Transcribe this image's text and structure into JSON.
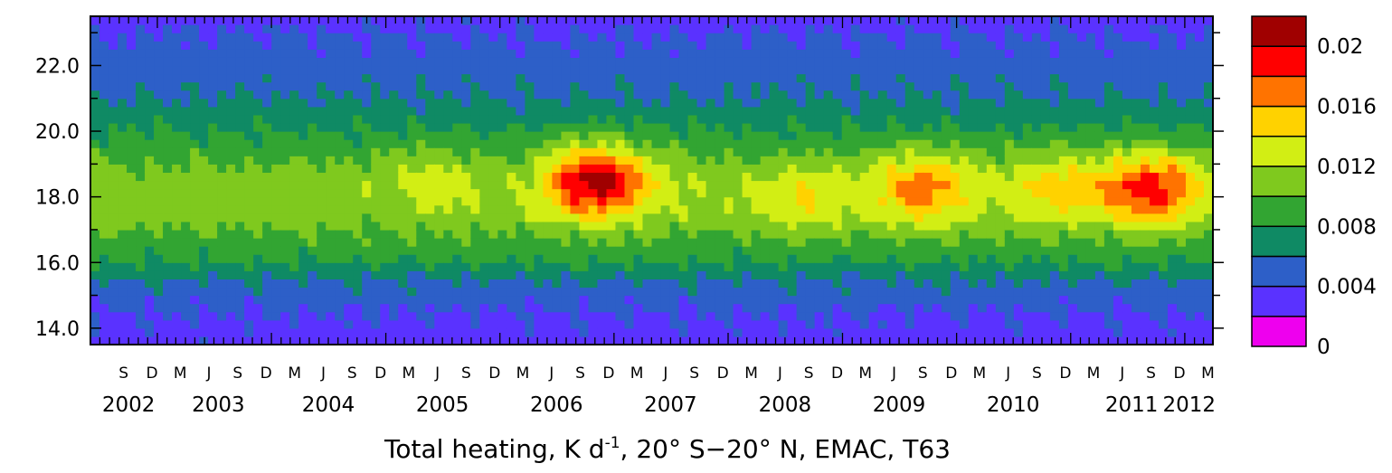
{
  "chart_data": {
    "type": "heatmap",
    "title_parts": [
      "Total heating, K d",
      "-1",
      ", 20° S−20° N, EMAC, T63"
    ],
    "y_ticks": [
      "14.0",
      "16.0",
      "18.0",
      "20.0",
      "22.0"
    ],
    "y_tick_values": [
      14,
      16,
      18,
      20,
      22
    ],
    "ylim": [
      13.5,
      23.5
    ],
    "xlim": [
      "2002-06-01",
      "2012-03-31"
    ],
    "x_month_labels": [
      {
        "t": "S",
        "date": "2002-09-15"
      },
      {
        "t": "D",
        "date": "2002-12-15"
      },
      {
        "t": "M",
        "date": "2003-03-15"
      },
      {
        "t": "J",
        "date": "2003-06-15"
      },
      {
        "t": "S",
        "date": "2003-09-15"
      },
      {
        "t": "D",
        "date": "2003-12-15"
      },
      {
        "t": "M",
        "date": "2004-03-15"
      },
      {
        "t": "J",
        "date": "2004-06-15"
      },
      {
        "t": "S",
        "date": "2004-09-15"
      },
      {
        "t": "D",
        "date": "2004-12-15"
      },
      {
        "t": "M",
        "date": "2005-03-15"
      },
      {
        "t": "J",
        "date": "2005-06-15"
      },
      {
        "t": "S",
        "date": "2005-09-15"
      },
      {
        "t": "D",
        "date": "2005-12-15"
      },
      {
        "t": "M",
        "date": "2006-03-15"
      },
      {
        "t": "J",
        "date": "2006-06-15"
      },
      {
        "t": "S",
        "date": "2006-09-15"
      },
      {
        "t": "D",
        "date": "2006-12-15"
      },
      {
        "t": "M",
        "date": "2007-03-15"
      },
      {
        "t": "J",
        "date": "2007-06-15"
      },
      {
        "t": "S",
        "date": "2007-09-15"
      },
      {
        "t": "D",
        "date": "2007-12-15"
      },
      {
        "t": "M",
        "date": "2008-03-15"
      },
      {
        "t": "J",
        "date": "2008-06-15"
      },
      {
        "t": "S",
        "date": "2008-09-15"
      },
      {
        "t": "D",
        "date": "2008-12-15"
      },
      {
        "t": "M",
        "date": "2009-03-15"
      },
      {
        "t": "J",
        "date": "2009-06-15"
      },
      {
        "t": "S",
        "date": "2009-09-15"
      },
      {
        "t": "D",
        "date": "2009-12-15"
      },
      {
        "t": "M",
        "date": "2010-03-15"
      },
      {
        "t": "J",
        "date": "2010-06-15"
      },
      {
        "t": "S",
        "date": "2010-09-15"
      },
      {
        "t": "D",
        "date": "2010-12-15"
      },
      {
        "t": "M",
        "date": "2011-03-15"
      },
      {
        "t": "J",
        "date": "2011-06-15"
      },
      {
        "t": "S",
        "date": "2011-09-15"
      },
      {
        "t": "D",
        "date": "2011-12-15"
      },
      {
        "t": "M",
        "date": "2012-03-15"
      }
    ],
    "x_year_labels": [
      "2002",
      "2003",
      "2004",
      "2005",
      "2006",
      "2007",
      "2008",
      "2009",
      "2010",
      "2011",
      "2012"
    ],
    "year_label_dates": [
      "2002-10-01",
      "2003-07-15",
      "2004-07-01",
      "2005-07-01",
      "2006-07-01",
      "2007-07-01",
      "2008-07-01",
      "2009-07-01",
      "2010-07-01",
      "2011-07-15",
      "2012-01-15"
    ],
    "colorbar": {
      "levels": [
        0,
        0.002,
        0.004,
        0.006,
        0.008,
        0.01,
        0.012,
        0.014,
        0.016,
        0.018,
        0.02,
        0.022
      ],
      "colors": [
        "#ee00ee",
        "#5a32ff",
        "#2d5fc8",
        "#0f8a64",
        "#32a532",
        "#7fc91e",
        "#d2ee14",
        "#ffd200",
        "#ff7300",
        "#ff0000",
        "#a00000"
      ],
      "labels": [
        "0",
        "0.004",
        "0.008",
        "0.012",
        "0.016",
        "0.02"
      ],
      "label_values": [
        0,
        0.004,
        0.008,
        0.012,
        0.016,
        0.02
      ]
    },
    "z_range": [
      0,
      0.022
    ],
    "grid": false,
    "y_levels": [
      13.5,
      14.5,
      15.0,
      15.5,
      16.0,
      16.5,
      17.0,
      17.5,
      18.0,
      18.5,
      19.0,
      19.5,
      20.0,
      21.0,
      22.0,
      23.0,
      23.5
    ],
    "series": [
      {
        "name": "background_profile",
        "z": [
          0.003,
          0.004,
          0.005,
          0.006,
          0.008,
          0.009,
          0.01,
          0.011,
          0.011,
          0.011,
          0.01,
          0.009,
          0.008,
          0.006,
          0.005,
          0.004,
          0.003
        ]
      }
    ],
    "features": [
      {
        "date": "2003-09-01",
        "peak_alt": 18.5,
        "z_peak": 0.011
      },
      {
        "date": "2005-06-01",
        "peak_alt": 18.5,
        "z_peak": 0.013
      },
      {
        "date": "2006-11-01",
        "peak_alt": 18.5,
        "z_peak": 0.021
      },
      {
        "date": "2007-07-01",
        "peak_alt": 18.5,
        "z_peak": 0.012
      },
      {
        "date": "2008-09-01",
        "peak_alt": 18.0,
        "z_peak": 0.014
      },
      {
        "date": "2009-09-15",
        "peak_alt": 18.3,
        "z_peak": 0.017
      },
      {
        "date": "2010-11-15",
        "peak_alt": 18.3,
        "z_peak": 0.015
      },
      {
        "date": "2011-09-15",
        "peak_alt": 18.3,
        "z_peak": 0.019
      }
    ]
  }
}
